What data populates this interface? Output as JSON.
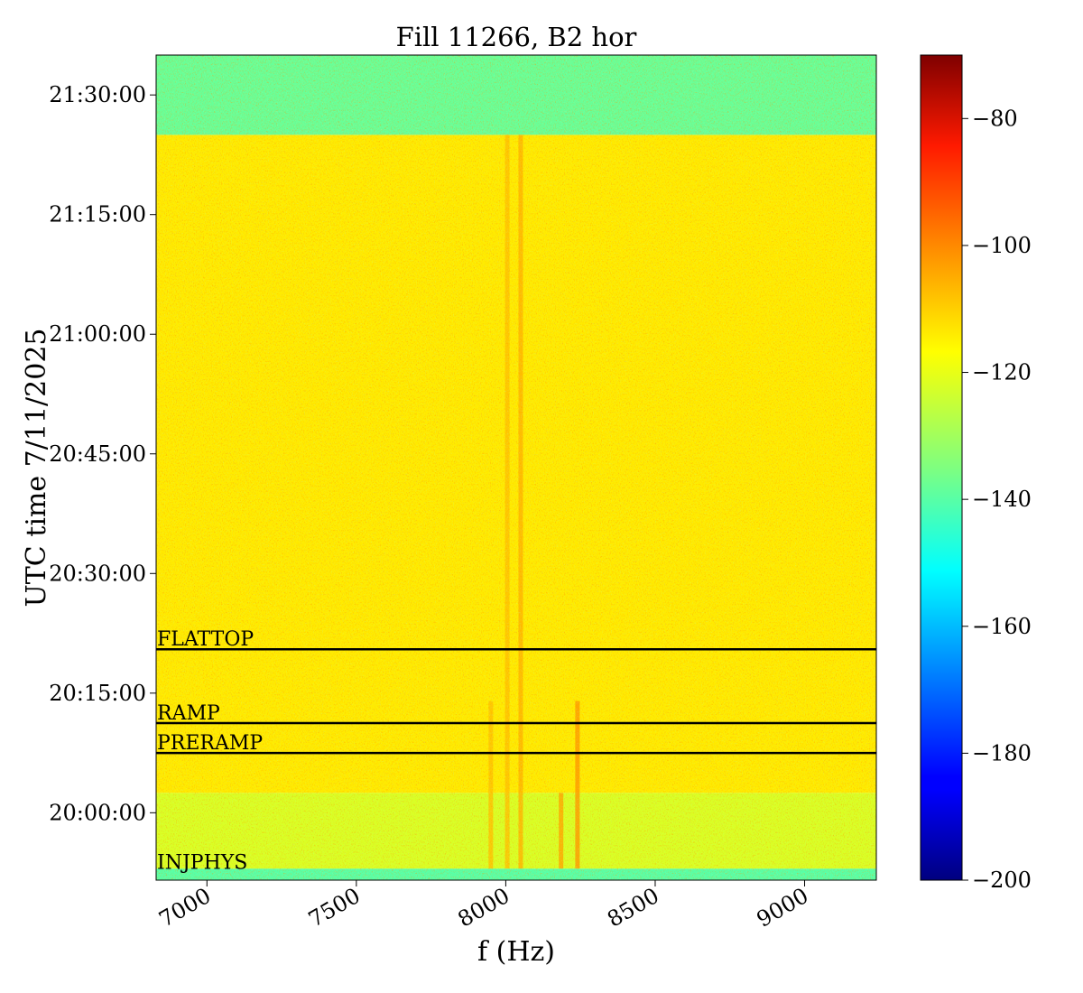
{
  "chart_data": {
    "type": "heatmap",
    "title": "Fill 11266, B2 hor",
    "xlabel": "f (Hz)",
    "ylabel": "UTC time 7/11/2025",
    "x_range": [
      6830,
      9240
    ],
    "x_ticks": [
      {
        "value": 7000,
        "label": "7000"
      },
      {
        "value": 7500,
        "label": "7500"
      },
      {
        "value": 8000,
        "label": "8000"
      },
      {
        "value": 8500,
        "label": "8500"
      },
      {
        "value": 9000,
        "label": "9000"
      }
    ],
    "y_range": [
      "19:51:33",
      "21:35:00"
    ],
    "y_ticks": [
      {
        "value": "20:00:00",
        "label": "20:00:00"
      },
      {
        "value": "20:15:00",
        "label": "20:15:00"
      },
      {
        "value": "20:30:00",
        "label": "20:30:00"
      },
      {
        "value": "20:45:00",
        "label": "20:45:00"
      },
      {
        "value": "21:00:00",
        "label": "21:00:00"
      },
      {
        "value": "21:15:00",
        "label": "21:15:00"
      },
      {
        "value": "21:30:00",
        "label": "21:30:00"
      }
    ],
    "colormap": "jet",
    "color_range": [
      -200,
      -70
    ],
    "colorbar_ticks": [
      {
        "value": -80,
        "label": "−80"
      },
      {
        "value": -100,
        "label": "−100"
      },
      {
        "value": -120,
        "label": "−120"
      },
      {
        "value": -140,
        "label": "−140"
      },
      {
        "value": -160,
        "label": "−160"
      },
      {
        "value": -180,
        "label": "−180"
      },
      {
        "value": -200,
        "label": "−200"
      }
    ],
    "regions": [
      {
        "t_start": "19:51:33",
        "t_end": "19:53:00",
        "level_dB": -140
      },
      {
        "t_start": "19:53:00",
        "t_end": "20:02:30",
        "level_dB": -122
      },
      {
        "t_start": "20:02:30",
        "t_end": "21:25:00",
        "level_dB": -114
      },
      {
        "t_start": "21:25:00",
        "t_end": "21:35:00",
        "level_dB": -138
      }
    ],
    "spectral_lines": [
      {
        "f_hz": 7950,
        "t_start": "19:53:00",
        "t_end": "20:14:00",
        "level_dB": -108
      },
      {
        "f_hz": 8005,
        "t_start": "19:53:00",
        "t_end": "21:25:00",
        "level_dB": -108
      },
      {
        "f_hz": 8050,
        "t_start": "19:53:00",
        "t_end": "21:25:00",
        "level_dB": -106
      },
      {
        "f_hz": 8185,
        "t_start": "19:53:00",
        "t_end": "20:02:30",
        "level_dB": -104
      },
      {
        "f_hz": 8240,
        "t_start": "19:53:00",
        "t_end": "20:14:00",
        "level_dB": -102
      }
    ],
    "annotations": [
      {
        "label": "FLATTOP",
        "time": "20:20:30"
      },
      {
        "label": "RAMP",
        "time": "20:11:15"
      },
      {
        "label": "PRERAMP",
        "time": "20:07:30"
      },
      {
        "label": "INJPHYS",
        "time": "19:52:30"
      }
    ],
    "grid": false
  }
}
